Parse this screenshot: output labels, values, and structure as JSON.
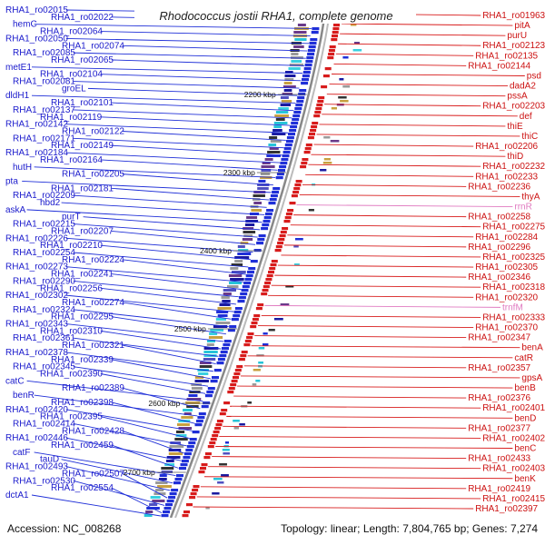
{
  "title": "Rhodococcus jostii RHA1, complete genome",
  "footer": {
    "accession": "Accession: NC_008268",
    "summary": "Topology: linear; Length: 7,804,765 bp; Genes: 7,274"
  },
  "ruler": [
    "2200 kbp",
    "2300 kbp",
    "2400 kbp",
    "2500 kbp",
    "2600 kbp",
    "2700 kbp"
  ],
  "colors": {
    "forward": "#1f2fd8",
    "reverse": "#d81c1c",
    "rna": "#e07ac0",
    "backbone": "#888888",
    "gc_skew_marker": "#2a8a2a"
  },
  "left_labels": [
    "RHA1_ro02015",
    "RHA1_ro02022",
    "hemC",
    "RHA1_ro02064",
    "RHA1_ro02050",
    "RHA1_ro02074",
    "RHA1_ro02085",
    "RHA1_ro02065",
    "metE1",
    "RHA1_ro02104",
    "RHA1_ro02081",
    "groEL",
    "dldH1",
    "RHA1_ro02101",
    "RHA1_ro02137",
    "RHA1_ro02119",
    "RHA1_ro02142",
    "RHA1_ro02122",
    "RHA1_ro02171",
    "RHA1_ro02149",
    "RHA1_ro02184",
    "RHA1_ro02164",
    "hutH",
    "RHA1_ro02205",
    "pta",
    "RHA1_ro02181",
    "RHA1_ro02209",
    "hbd2",
    "askA",
    "purT",
    "RHA1_ro02215",
    "RHA1_ro02207",
    "RHA1_ro02226",
    "RHA1_ro02210",
    "RHA1_ro02254",
    "RHA1_ro02224",
    "RHA1_ro02273",
    "RHA1_ro02241",
    "RHA1_ro02290",
    "RHA1_ro02256",
    "RHA1_ro02302",
    "RHA1_ro02274",
    "RHA1_ro02324",
    "RHA1_ro02295",
    "RHA1_ro02343",
    "RHA1_ro02310",
    "RHA1_ro02361",
    "RHA1_ro02321",
    "RHA1_ro02378",
    "RHA1_ro02339",
    "RHA1_ro02345",
    "RHA1_ro02390",
    "catC",
    "RHA1_ro02389",
    "benR",
    "RHA1_ro02398",
    "RHA1_ro02420",
    "RHA1_ro02395",
    "RHA1_ro02414",
    "RHA1_ro02428",
    "RHA1_ro02446",
    "RHA1_ro02459",
    "catF",
    "tauD",
    "RHA1_ro02493",
    "RHA1_ro02507",
    "RHA1_ro02530",
    "RHA1_ro02554",
    "dctA1"
  ],
  "right_labels": [
    "RHA1_ro01963",
    "pitA",
    "purU",
    "RHA1_ro02123",
    "RHA1_ro02135",
    "RHA1_ro02144",
    "psd",
    "dadA2",
    "pssA",
    "RHA1_ro02203",
    "def",
    "thiE",
    "thiC",
    "RHA1_ro02206",
    "thiD",
    "RHA1_ro02232",
    "RHA1_ro02233",
    "RHA1_ro02236",
    "thyA",
    "rrnR",
    "RHA1_ro02258",
    "RHA1_ro02275",
    "RHA1_ro02284",
    "RHA1_ro02296",
    "RHA1_ro02325",
    "RHA1_ro02305",
    "RHA1_ro02346",
    "RHA1_ro02318",
    "RHA1_ro02320",
    "trnfM",
    "RHA1_ro02333",
    "RHA1_ro02370",
    "RHA1_ro02347",
    "benA",
    "catR",
    "RHA1_ro02357",
    "gpsA",
    "benB",
    "RHA1_ro02376",
    "RHA1_ro02401",
    "benD",
    "RHA1_ro02377",
    "RHA1_ro02402",
    "benC",
    "RHA1_ro02433",
    "RHA1_ro02403",
    "benK",
    "RHA1_ro02419",
    "RHA1_ro02415",
    "RHA1_ro02397"
  ]
}
